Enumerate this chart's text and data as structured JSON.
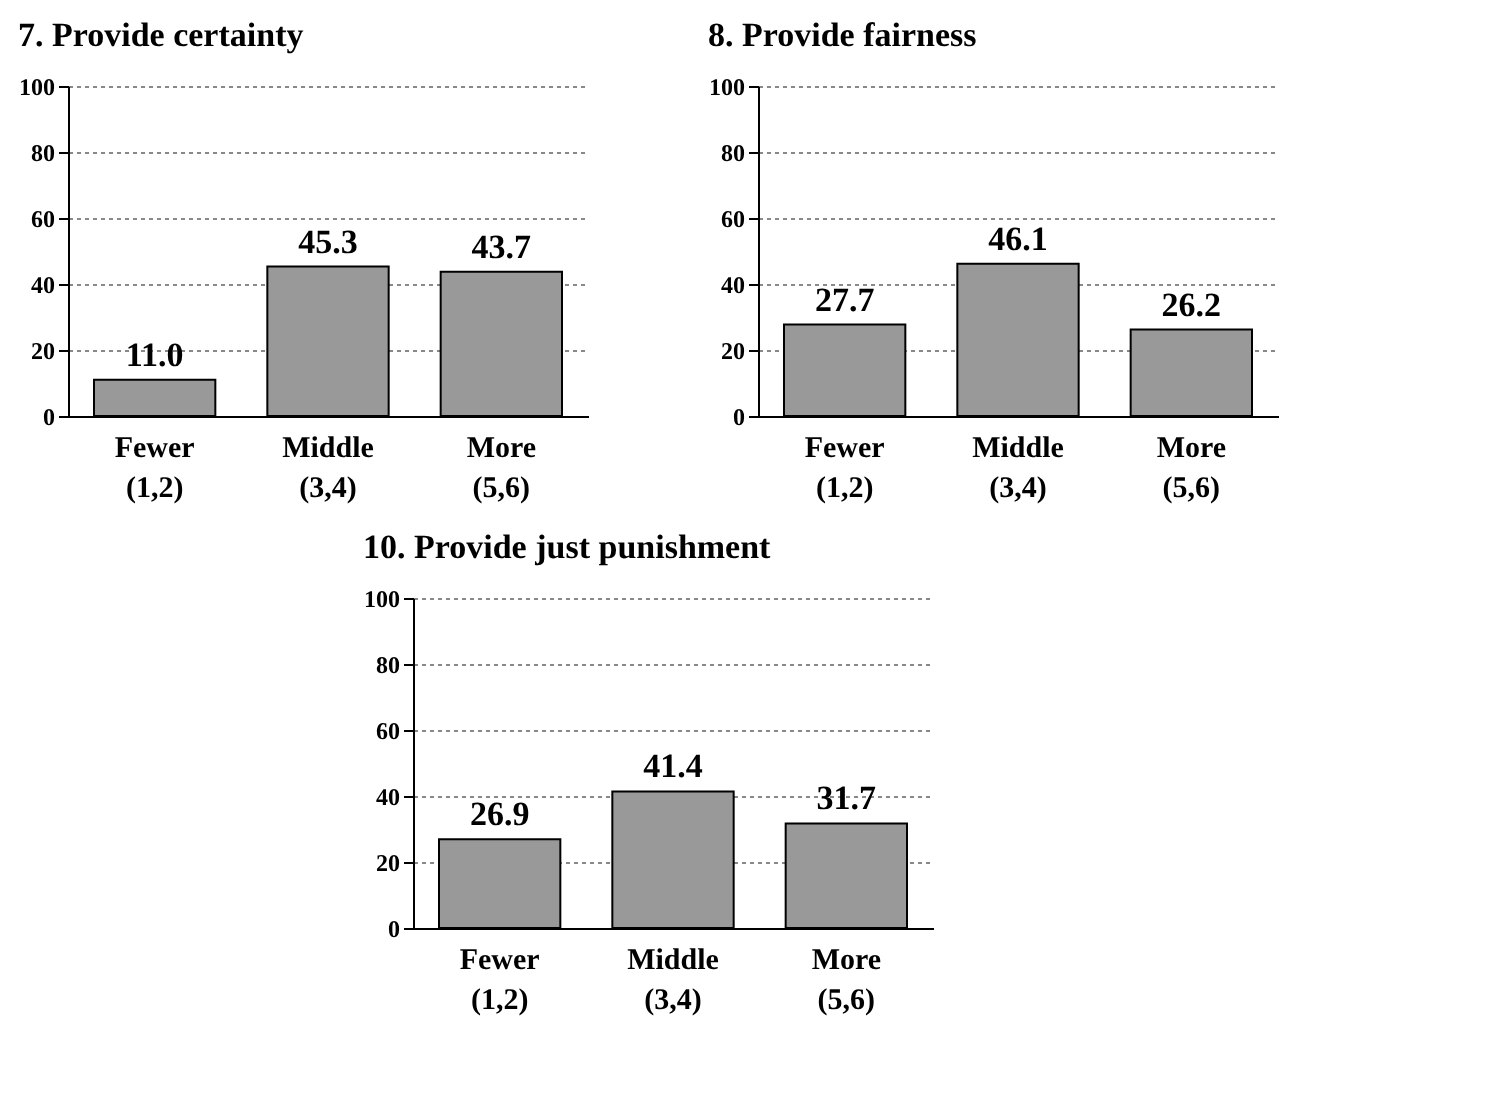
{
  "chart_data": [
    {
      "type": "bar",
      "title": "7. Provide certainty",
      "categories": [
        "Fewer (1,2)",
        "Middle (3,4)",
        "More (5,6)"
      ],
      "values": [
        11.0,
        45.3,
        43.7
      ],
      "value_labels": [
        "11.0",
        "45.3",
        "43.7"
      ],
      "color": "#999999",
      "ylim": [
        0,
        100
      ],
      "yticks": [
        0,
        20,
        40,
        60,
        80,
        100
      ],
      "grid": "y"
    },
    {
      "type": "bar",
      "title": "8. Provide fairness",
      "categories": [
        "Fewer (1,2)",
        "Middle (3,4)",
        "More (5,6)"
      ],
      "values": [
        27.7,
        46.1,
        26.2
      ],
      "value_labels": [
        "27.7",
        "46.1",
        "26.2"
      ],
      "color": "#999999",
      "ylim": [
        0,
        100
      ],
      "yticks": [
        0,
        20,
        40,
        60,
        80,
        100
      ],
      "grid": "y"
    },
    {
      "type": "bar",
      "title": "10. Provide just punishment",
      "categories": [
        "Fewer (1,2)",
        "Middle (3,4)",
        "More (5,6)"
      ],
      "values": [
        26.9,
        41.4,
        31.7
      ],
      "value_labels": [
        "26.9",
        "41.4",
        "31.7"
      ],
      "color": "#999999",
      "ylim": [
        0,
        100
      ],
      "yticks": [
        0,
        20,
        40,
        60,
        80,
        100
      ],
      "grid": "y"
    }
  ]
}
